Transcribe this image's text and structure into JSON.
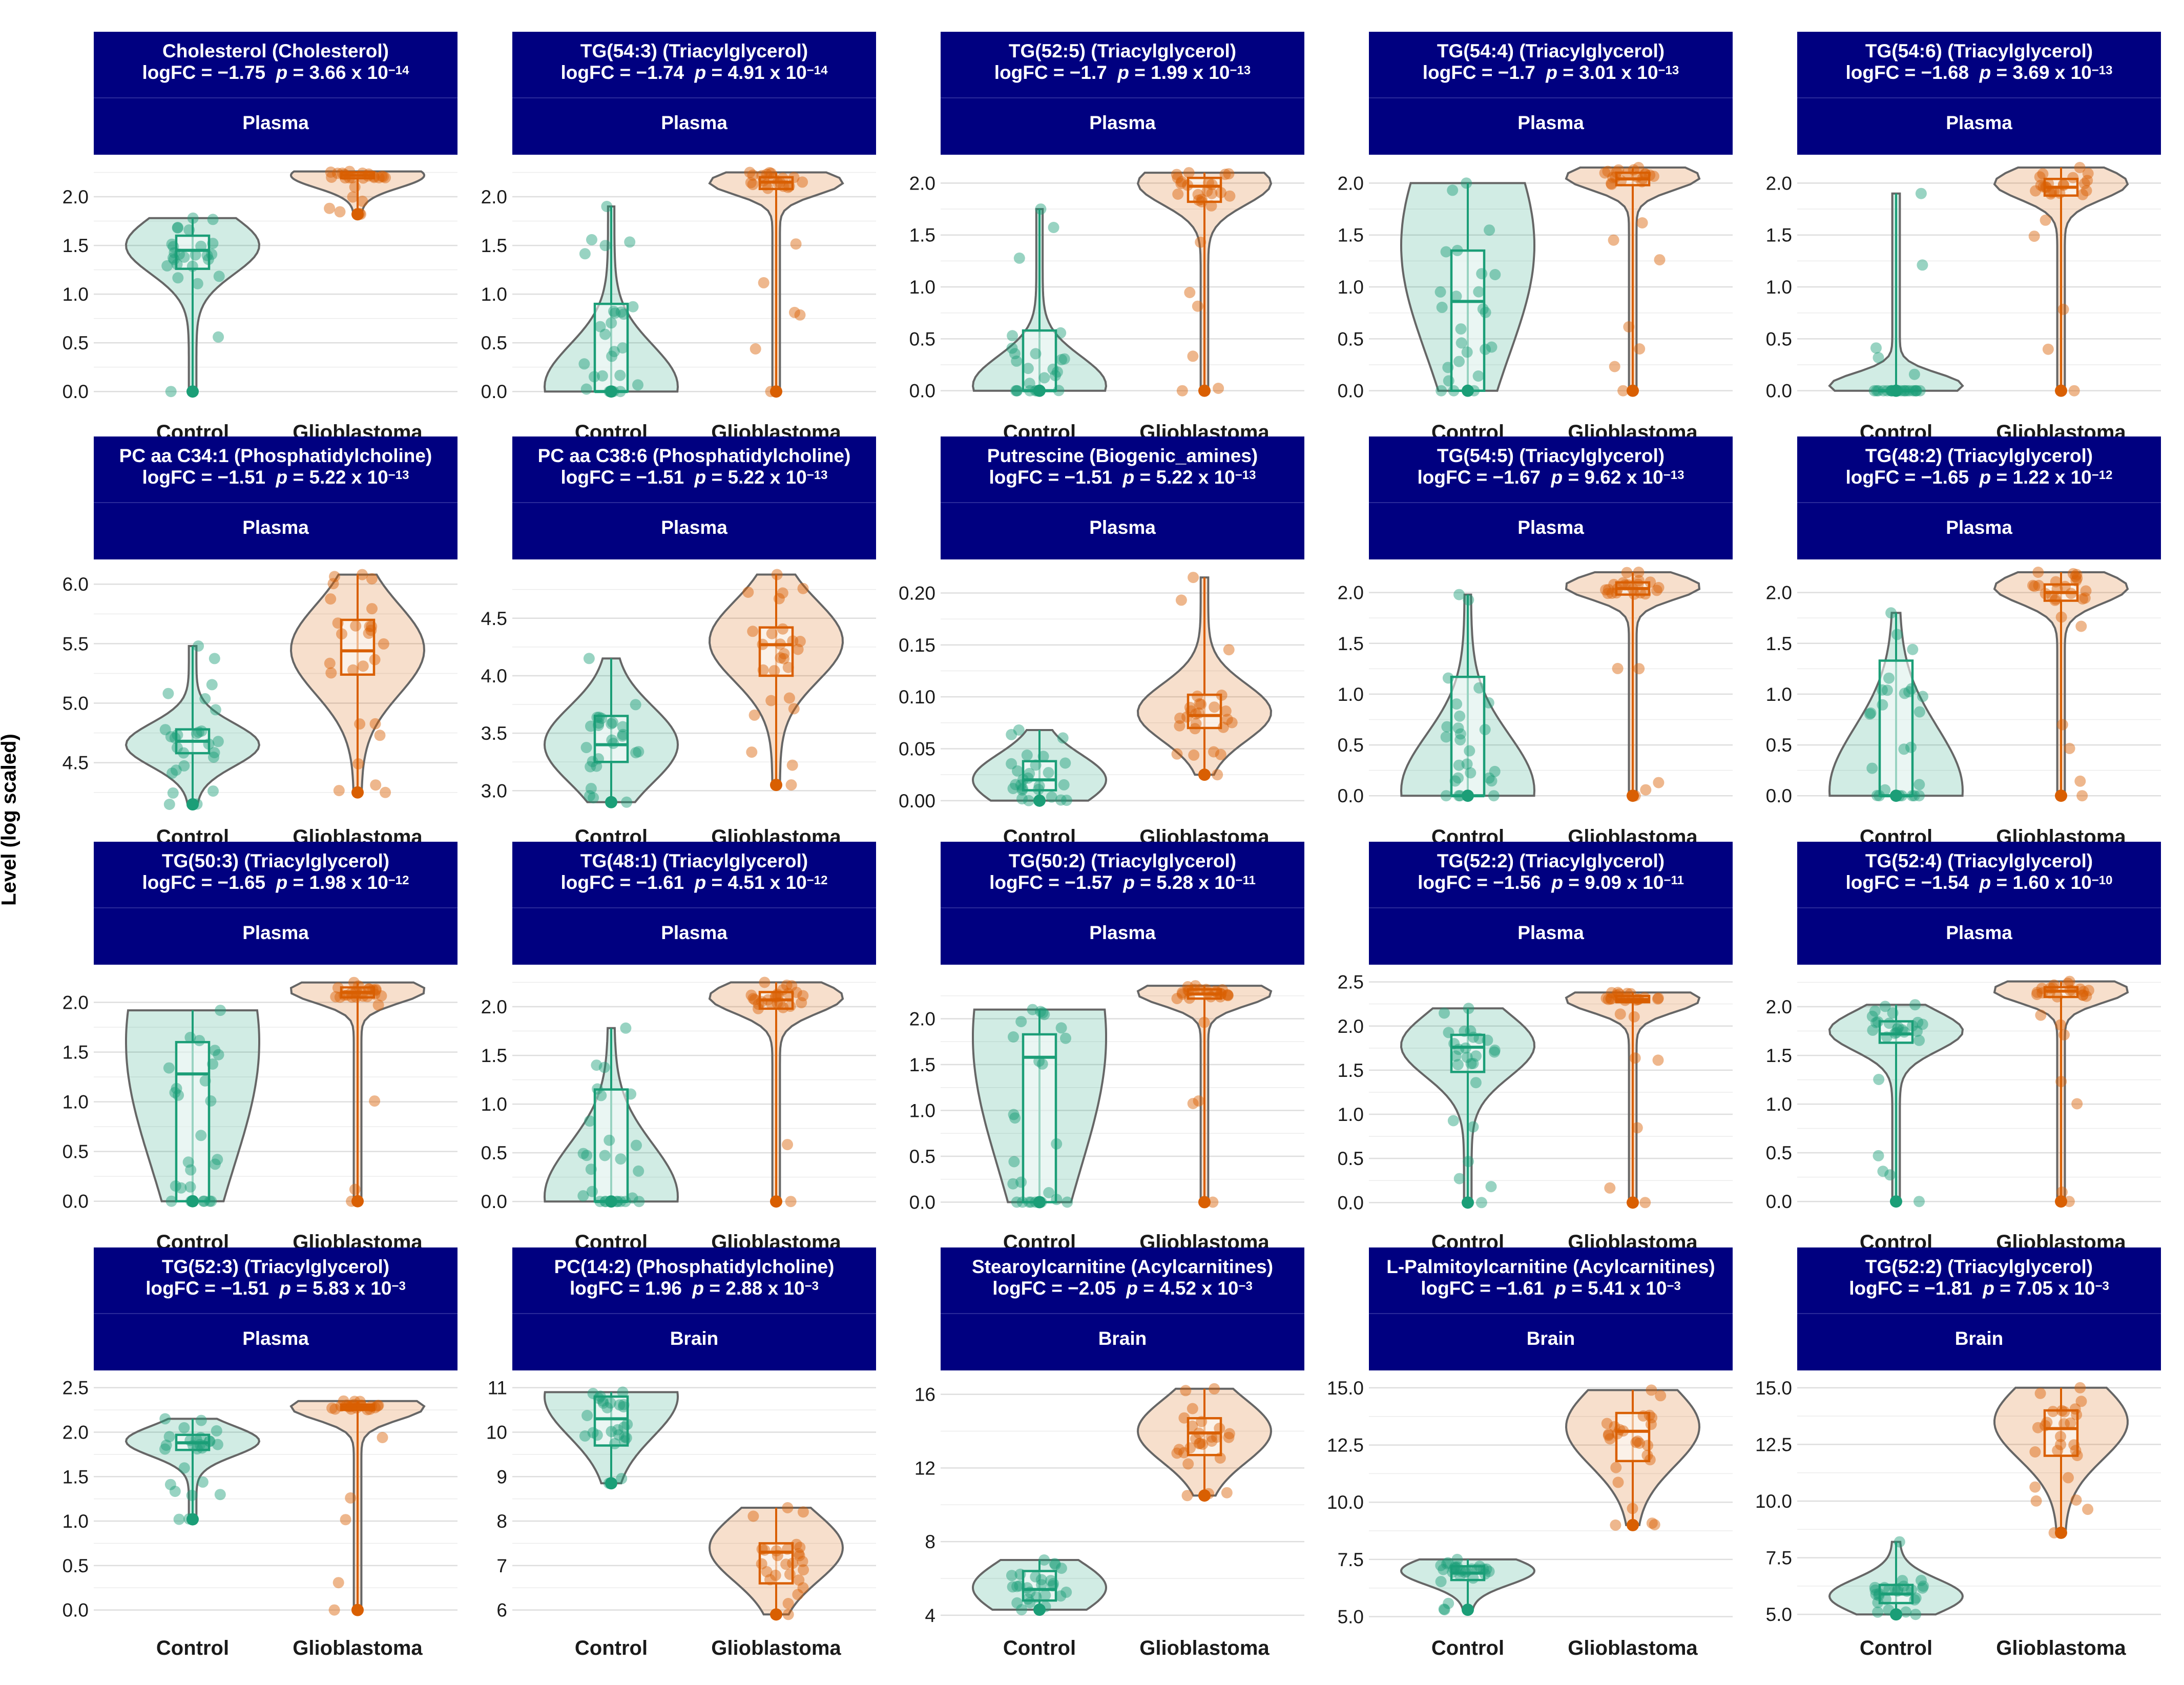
{
  "y_axis_label": "Level (log scaled)",
  "colors": {
    "control": "#1b9e77",
    "glioblastoma": "#d95f02",
    "strip": "#000080"
  },
  "chart_data": [
    {
      "type": "violin",
      "title": "Cholesterol (Cholesterol)",
      "logfc": "logFC = −1.75",
      "pval": "3.66 x 10",
      "pexp": "−14",
      "tissue": "Plasma",
      "categories": [
        "Control",
        "Glioblastoma"
      ],
      "ylim": [
        -0.12,
        2.3
      ],
      "yticks": [
        0.0,
        0.5,
        1.0,
        1.5,
        2.0
      ],
      "yticklabels": [
        "0.0",
        "0.5",
        "1.0",
        "1.5",
        "2.0"
      ],
      "series": [
        {
          "q1": 1.26,
          "median": 1.45,
          "q3": 1.6,
          "min": 0.0,
          "max": 1.78,
          "vmin": 0.0,
          "vmax": 1.78,
          "peak": 1.5
        },
        {
          "q1": 2.19,
          "median": 2.22,
          "q3": 2.25,
          "min": 1.82,
          "max": 2.26,
          "vmin": 1.82,
          "vmax": 2.26,
          "peak": 2.22
        }
      ]
    },
    {
      "type": "violin",
      "title": "TG(54:3) (Triacylglycerol)",
      "logfc": "logFC = −1.74",
      "pval": "4.91 x 10",
      "pexp": "−14",
      "tissue": "Plasma",
      "categories": [
        "Control",
        "Glioblastoma"
      ],
      "ylim": [
        -0.12,
        2.3
      ],
      "yticks": [
        0.0,
        0.5,
        1.0,
        1.5,
        2.0
      ],
      "yticklabels": [
        "0.0",
        "0.5",
        "1.0",
        "1.5",
        "2.0"
      ],
      "series": [
        {
          "q1": 0.0,
          "median": 0.0,
          "q3": 0.9,
          "min": 0.0,
          "max": 1.9,
          "vmin": 0.0,
          "vmax": 1.9,
          "peak": 0.05
        },
        {
          "q1": 2.08,
          "median": 2.15,
          "q3": 2.2,
          "min": 0.0,
          "max": 2.25,
          "vmin": 0.0,
          "vmax": 2.25,
          "peak": 2.15
        }
      ]
    },
    {
      "type": "violin",
      "title": "TG(52:5) (Triacylglycerol)",
      "logfc": "logFC = −1.7",
      "pval": "1.99 x 10",
      "pexp": "−13",
      "tissue": "Plasma",
      "categories": [
        "Control",
        "Glioblastoma"
      ],
      "ylim": [
        -0.12,
        2.15
      ],
      "yticks": [
        0.0,
        0.5,
        1.0,
        1.5,
        2.0
      ],
      "yticklabels": [
        "0.0",
        "0.5",
        "1.0",
        "1.5",
        "2.0"
      ],
      "series": [
        {
          "q1": 0.0,
          "median": 0.0,
          "q3": 0.58,
          "min": 0.0,
          "max": 1.75,
          "vmin": 0.0,
          "vmax": 1.75,
          "peak": 0.05
        },
        {
          "q1": 1.82,
          "median": 1.97,
          "q3": 2.05,
          "min": 0.0,
          "max": 2.1,
          "vmin": 0.0,
          "vmax": 2.1,
          "peak": 2.0
        }
      ]
    },
    {
      "type": "violin",
      "title": "TG(54:4) (Triacylglycerol)",
      "logfc": "logFC = −1.7",
      "pval": "3.01 x 10",
      "pexp": "−13",
      "tissue": "Plasma",
      "categories": [
        "Control",
        "Glioblastoma"
      ],
      "ylim": [
        -0.12,
        2.15
      ],
      "yticks": [
        0.0,
        0.5,
        1.0,
        1.5,
        2.0
      ],
      "yticklabels": [
        "0.0",
        "0.5",
        "1.0",
        "1.5",
        "2.0"
      ],
      "series": [
        {
          "q1": 0.0,
          "median": 0.86,
          "q3": 1.35,
          "min": 0.0,
          "max": 2.0,
          "vmin": 0.0,
          "vmax": 2.0,
          "peak": 1.4
        },
        {
          "q1": 1.98,
          "median": 2.04,
          "q3": 2.1,
          "min": 0.0,
          "max": 2.15,
          "vmin": 0.0,
          "vmax": 2.15,
          "peak": 2.06
        }
      ]
    },
    {
      "type": "violin",
      "title": "TG(54:6) (Triacylglycerol)",
      "logfc": "logFC = −1.68",
      "pval": "3.69 x 10",
      "pexp": "−13",
      "tissue": "Plasma",
      "categories": [
        "Control",
        "Glioblastoma"
      ],
      "ylim": [
        -0.12,
        2.15
      ],
      "yticks": [
        0.0,
        0.5,
        1.0,
        1.5,
        2.0
      ],
      "yticklabels": [
        "0.0",
        "0.5",
        "1.0",
        "1.5",
        "2.0"
      ],
      "series": [
        {
          "q1": 0.0,
          "median": 0.0,
          "q3": 0.0,
          "min": 0.0,
          "max": 1.9,
          "vmin": 0.0,
          "vmax": 1.9,
          "peak": 0.05
        },
        {
          "q1": 1.88,
          "median": 1.96,
          "q3": 2.04,
          "min": 0.0,
          "max": 2.15,
          "vmin": 0.0,
          "vmax": 2.15,
          "peak": 2.0
        }
      ]
    },
    {
      "type": "violin",
      "title": "PC aa C34:1 (Phosphatidylcholine)",
      "logfc": "logFC = −1.51",
      "pval": "5.22 x 10",
      "pexp": "−13",
      "tissue": "Plasma",
      "categories": [
        "Control",
        "Glioblastoma"
      ],
      "ylim": [
        4.12,
        6.1
      ],
      "yticks": [
        4.5,
        5.0,
        5.5,
        6.0
      ],
      "yticklabels": [
        "4.5",
        "5.0",
        "5.5",
        "6.0"
      ],
      "series": [
        {
          "q1": 4.58,
          "median": 4.68,
          "q3": 4.78,
          "min": 4.15,
          "max": 5.48,
          "vmin": 4.15,
          "vmax": 5.48,
          "peak": 4.65
        },
        {
          "q1": 5.24,
          "median": 5.44,
          "q3": 5.7,
          "min": 4.25,
          "max": 6.08,
          "vmin": 4.25,
          "vmax": 6.08,
          "peak": 5.45
        }
      ]
    },
    {
      "type": "violin",
      "title": "PC aa C38:6 (Phosphatidylcholine)",
      "logfc": "logFC = −1.51",
      "pval": "5.22 x 10",
      "pexp": "−13",
      "tissue": "Plasma",
      "categories": [
        "Control",
        "Glioblastoma"
      ],
      "ylim": [
        2.85,
        4.9
      ],
      "yticks": [
        3.0,
        3.5,
        4.0,
        4.5
      ],
      "yticklabels": [
        "3.0",
        "3.5",
        "4.0",
        "4.5"
      ],
      "series": [
        {
          "q1": 3.25,
          "median": 3.4,
          "q3": 3.65,
          "min": 2.9,
          "max": 4.15,
          "vmin": 2.9,
          "vmax": 4.15,
          "peak": 3.4
        },
        {
          "q1": 4.0,
          "median": 4.27,
          "q3": 4.42,
          "min": 3.05,
          "max": 4.88,
          "vmin": 3.05,
          "vmax": 4.88,
          "peak": 4.3
        }
      ]
    },
    {
      "type": "violin",
      "title": "Putrescine (Biogenic_amines)",
      "logfc": "logFC = −1.51",
      "pval": "5.22 x 10",
      "pexp": "−13",
      "tissue": "Plasma",
      "categories": [
        "Control",
        "Glioblastoma"
      ],
      "ylim": [
        -0.007,
        0.22
      ],
      "yticks": [
        0.0,
        0.05,
        0.1,
        0.15,
        0.2
      ],
      "yticklabels": [
        "0.00",
        "0.05",
        "0.10",
        "0.15",
        "0.20"
      ],
      "series": [
        {
          "q1": 0.01,
          "median": 0.02,
          "q3": 0.038,
          "min": 0.0,
          "max": 0.068,
          "vmin": 0.0,
          "vmax": 0.068,
          "peak": 0.02
        },
        {
          "q1": 0.07,
          "median": 0.082,
          "q3": 0.102,
          "min": 0.025,
          "max": 0.215,
          "vmin": 0.025,
          "vmax": 0.215,
          "peak": 0.085
        }
      ]
    },
    {
      "type": "violin",
      "title": "TG(54:5) (Triacylglycerol)",
      "logfc": "logFC = −1.67",
      "pval": "9.62 x 10",
      "pexp": "−13",
      "tissue": "Plasma",
      "categories": [
        "Control",
        "Glioblastoma"
      ],
      "ylim": [
        -0.12,
        2.2
      ],
      "yticks": [
        0.0,
        0.5,
        1.0,
        1.5,
        2.0
      ],
      "yticklabels": [
        "0.0",
        "0.5",
        "1.0",
        "1.5",
        "2.0"
      ],
      "series": [
        {
          "q1": 0.0,
          "median": 0.0,
          "q3": 1.17,
          "min": 0.0,
          "max": 1.98,
          "vmin": 0.0,
          "vmax": 1.98,
          "peak": 0.05
        },
        {
          "q1": 1.98,
          "median": 2.04,
          "q3": 2.1,
          "min": 0.0,
          "max": 2.2,
          "vmin": 0.0,
          "vmax": 2.2,
          "peak": 2.06
        }
      ]
    },
    {
      "type": "violin",
      "title": "TG(48:2) (Triacylglycerol)",
      "logfc": "logFC = −1.65",
      "pval": "1.22 x 10",
      "pexp": "−12",
      "tissue": "Plasma",
      "categories": [
        "Control",
        "Glioblastoma"
      ],
      "ylim": [
        -0.12,
        2.2
      ],
      "yticks": [
        0.0,
        0.5,
        1.0,
        1.5,
        2.0
      ],
      "yticklabels": [
        "0.0",
        "0.5",
        "1.0",
        "1.5",
        "2.0"
      ],
      "series": [
        {
          "q1": 0.0,
          "median": 0.0,
          "q3": 1.33,
          "min": 0.0,
          "max": 1.8,
          "vmin": 0.0,
          "vmax": 1.8,
          "peak": 0.05
        },
        {
          "q1": 1.92,
          "median": 2.0,
          "q3": 2.08,
          "min": 0.0,
          "max": 2.2,
          "vmin": 0.0,
          "vmax": 2.2,
          "peak": 2.05
        }
      ]
    },
    {
      "type": "violin",
      "title": "TG(50:3) (Triacylglycerol)",
      "logfc": "logFC = −1.65",
      "pval": "1.98 x 10",
      "pexp": "−12",
      "tissue": "Plasma",
      "categories": [
        "Control",
        "Glioblastoma"
      ],
      "ylim": [
        -0.12,
        2.25
      ],
      "yticks": [
        0.0,
        0.5,
        1.0,
        1.5,
        2.0
      ],
      "yticklabels": [
        "0.0",
        "0.5",
        "1.0",
        "1.5",
        "2.0"
      ],
      "series": [
        {
          "q1": 0.0,
          "median": 1.28,
          "q3": 1.6,
          "min": 0.0,
          "max": 1.92,
          "vmin": 0.0,
          "vmax": 1.92,
          "peak": 1.6
        },
        {
          "q1": 2.05,
          "median": 2.1,
          "q3": 2.15,
          "min": 0.0,
          "max": 2.2,
          "vmin": 0.0,
          "vmax": 2.2,
          "peak": 2.12
        }
      ]
    },
    {
      "type": "violin",
      "title": "TG(48:1) (Triacylglycerol)",
      "logfc": "logFC = −1.61",
      "pval": "4.51 x 10",
      "pexp": "−12",
      "tissue": "Plasma",
      "categories": [
        "Control",
        "Glioblastoma"
      ],
      "ylim": [
        -0.12,
        2.3
      ],
      "yticks": [
        0.0,
        0.5,
        1.0,
        1.5,
        2.0
      ],
      "yticklabels": [
        "0.0",
        "0.5",
        "1.0",
        "1.5",
        "2.0"
      ],
      "series": [
        {
          "q1": 0.0,
          "median": 0.0,
          "q3": 1.15,
          "min": 0.0,
          "max": 1.78,
          "vmin": 0.0,
          "vmax": 1.78,
          "peak": 0.05
        },
        {
          "q1": 1.98,
          "median": 2.07,
          "q3": 2.15,
          "min": 0.0,
          "max": 2.25,
          "vmin": 0.0,
          "vmax": 2.25,
          "peak": 2.1
        }
      ]
    },
    {
      "type": "violin",
      "title": "TG(50:2) (Triacylglycerol)",
      "logfc": "logFC = −1.57",
      "pval": "5.28 x 10",
      "pexp": "−11",
      "tissue": "Plasma",
      "categories": [
        "Control",
        "Glioblastoma"
      ],
      "ylim": [
        -0.12,
        2.45
      ],
      "yticks": [
        0.0,
        0.5,
        1.0,
        1.5,
        2.0
      ],
      "yticklabels": [
        "0.0",
        "0.5",
        "1.0",
        "1.5",
        "2.0"
      ],
      "series": [
        {
          "q1": 0.0,
          "median": 1.58,
          "q3": 1.83,
          "min": 0.0,
          "max": 2.1,
          "vmin": 0.0,
          "vmax": 2.1,
          "peak": 1.8
        },
        {
          "q1": 2.22,
          "median": 2.27,
          "q3": 2.32,
          "min": 0.0,
          "max": 2.36,
          "vmin": 0.0,
          "vmax": 2.36,
          "peak": 2.28
        }
      ]
    },
    {
      "type": "violin",
      "title": "TG(52:2) (Triacylglycerol)",
      "logfc": "logFC = −1.56",
      "pval": "9.09 x 10",
      "pexp": "−11",
      "tissue": "Plasma",
      "categories": [
        "Control",
        "Glioblastoma"
      ],
      "ylim": [
        -0.12,
        2.55
      ],
      "yticks": [
        0.0,
        0.5,
        1.0,
        1.5,
        2.0,
        2.5
      ],
      "yticklabels": [
        "0.0",
        "0.5",
        "1.0",
        "1.5",
        "2.0",
        "2.5"
      ],
      "series": [
        {
          "q1": 1.48,
          "median": 1.76,
          "q3": 1.9,
          "min": 0.0,
          "max": 2.2,
          "vmin": 0.0,
          "vmax": 2.2,
          "peak": 1.78
        },
        {
          "q1": 2.27,
          "median": 2.3,
          "q3": 2.34,
          "min": 0.0,
          "max": 2.38,
          "vmin": 0.0,
          "vmax": 2.38,
          "peak": 2.3
        }
      ]
    },
    {
      "type": "violin",
      "title": "TG(52:4) (Triacylglycerol)",
      "logfc": "logFC = −1.54",
      "pval": "1.60 x 10",
      "pexp": "−10",
      "tissue": "Plasma",
      "categories": [
        "Control",
        "Glioblastoma"
      ],
      "ylim": [
        -0.12,
        2.3
      ],
      "yticks": [
        0.0,
        0.5,
        1.0,
        1.5,
        2.0
      ],
      "yticklabels": [
        "0.0",
        "0.5",
        "1.0",
        "1.5",
        "2.0"
      ],
      "series": [
        {
          "q1": 1.63,
          "median": 1.72,
          "q3": 1.85,
          "min": 0.0,
          "max": 2.02,
          "vmin": 0.0,
          "vmax": 2.02,
          "peak": 1.75
        },
        {
          "q1": 2.1,
          "median": 2.16,
          "q3": 2.2,
          "min": 0.0,
          "max": 2.26,
          "vmin": 0.0,
          "vmax": 2.26,
          "peak": 2.17
        }
      ]
    },
    {
      "type": "violin",
      "title": "TG(52:3) (Triacylglycerol)",
      "logfc": "logFC = −1.51",
      "pval": "5.83 x 10",
      "pexp": "−3",
      "tissue": "Plasma",
      "categories": [
        "Control",
        "Glioblastoma"
      ],
      "ylim": [
        -0.1,
        2.55
      ],
      "yticks": [
        0.0,
        0.5,
        1.0,
        1.5,
        2.0,
        2.5
      ],
      "yticklabels": [
        "0.0",
        "0.5",
        "1.0",
        "1.5",
        "2.0",
        "2.5"
      ],
      "series": [
        {
          "q1": 1.8,
          "median": 1.88,
          "q3": 1.97,
          "min": 1.02,
          "max": 2.15,
          "vmin": 1.02,
          "vmax": 2.15,
          "peak": 1.9
        },
        {
          "q1": 2.25,
          "median": 2.28,
          "q3": 2.31,
          "min": 0.0,
          "max": 2.35,
          "vmin": 0.0,
          "vmax": 2.35,
          "peak": 2.28
        }
      ]
    },
    {
      "type": "violin",
      "title": "PC(14:2) (Phosphatidylcholine)",
      "logfc": "logFC = 1.96",
      "pval": "2.88 x 10",
      "pexp": "−3",
      "tissue": "Brain",
      "categories": [
        "Control",
        "Glioblastoma"
      ],
      "ylim": [
        5.8,
        11.1
      ],
      "yticks": [
        6,
        7,
        8,
        9,
        10,
        11
      ],
      "yticklabels": [
        "6",
        "7",
        "8",
        "9",
        "10",
        "11"
      ],
      "series": [
        {
          "q1": 9.7,
          "median": 10.3,
          "q3": 10.8,
          "min": 8.85,
          "max": 10.9,
          "vmin": 8.85,
          "vmax": 10.9,
          "peak": 10.8
        },
        {
          "q1": 6.6,
          "median": 7.3,
          "q3": 7.5,
          "min": 5.9,
          "max": 8.3,
          "vmin": 5.9,
          "vmax": 8.3,
          "peak": 7.4
        }
      ]
    },
    {
      "type": "violin",
      "title": "Stearoylcarnitine (Acylcarnitines)",
      "logfc": "logFC = −2.05",
      "pval": "4.52 x 10",
      "pexp": "−3",
      "tissue": "Brain",
      "categories": [
        "Control",
        "Glioblastoma"
      ],
      "ylim": [
        3.8,
        16.6
      ],
      "yticks": [
        4,
        8,
        12,
        16
      ],
      "yticklabels": [
        "4",
        "8",
        "12",
        "16"
      ],
      "series": [
        {
          "q1": 4.8,
          "median": 5.4,
          "q3": 6.4,
          "min": 4.3,
          "max": 7.0,
          "vmin": 4.3,
          "vmax": 7.0,
          "peak": 5.5
        },
        {
          "q1": 12.7,
          "median": 13.9,
          "q3": 14.7,
          "min": 10.5,
          "max": 16.3,
          "vmin": 10.5,
          "vmax": 16.3,
          "peak": 14.0
        }
      ]
    },
    {
      "type": "violin",
      "title": "L-Palmitoylcarnitine (Acylcarnitines)",
      "logfc": "logFC = −1.61",
      "pval": "5.41 x 10",
      "pexp": "−3",
      "tissue": "Brain",
      "categories": [
        "Control",
        "Glioblastoma"
      ],
      "ylim": [
        4.9,
        15.2
      ],
      "yticks": [
        5.0,
        7.5,
        10.0,
        12.5,
        15.0
      ],
      "yticklabels": [
        "5.0",
        "7.5",
        "10.0",
        "12.5",
        "15.0"
      ],
      "series": [
        {
          "q1": 6.6,
          "median": 6.9,
          "q3": 7.2,
          "min": 5.3,
          "max": 7.5,
          "vmin": 5.3,
          "vmax": 7.5,
          "peak": 7.0
        },
        {
          "q1": 11.8,
          "median": 13.1,
          "q3": 13.9,
          "min": 9.0,
          "max": 14.9,
          "vmin": 9.0,
          "vmax": 14.9,
          "peak": 13.3
        }
      ]
    },
    {
      "type": "violin",
      "title": "TG(52:2) (Triacylglycerol)",
      "logfc": "logFC = −1.81",
      "pval": "7.05 x 10",
      "pexp": "−3",
      "tissue": "Brain",
      "categories": [
        "Control",
        "Glioblastoma"
      ],
      "ylim": [
        4.8,
        15.2
      ],
      "yticks": [
        5.0,
        7.5,
        10.0,
        12.5,
        15.0
      ],
      "yticklabels": [
        "5.0",
        "7.5",
        "10.0",
        "12.5",
        "15.0"
      ],
      "series": [
        {
          "q1": 5.5,
          "median": 5.9,
          "q3": 6.3,
          "min": 5.0,
          "max": 8.2,
          "vmin": 5.0,
          "vmax": 8.2,
          "peak": 5.8
        },
        {
          "q1": 12.0,
          "median": 13.2,
          "q3": 14.0,
          "min": 8.6,
          "max": 15.0,
          "vmin": 8.6,
          "vmax": 15.0,
          "peak": 13.5
        }
      ]
    }
  ]
}
